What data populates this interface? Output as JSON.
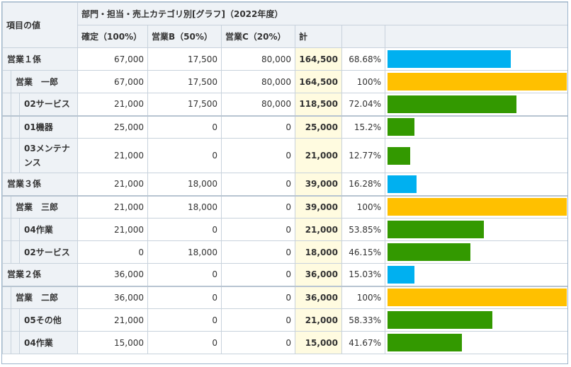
{
  "header": {
    "row_label": "項目の値",
    "group_title": "部門・担当・売上カテゴリ別[グラフ]（2022年度）",
    "columns": [
      "確定（100%）",
      "営業B（50%）",
      "営業C（20%）",
      "計"
    ]
  },
  "colors": {
    "section": "#00b0f0",
    "person": "#ffc000",
    "category": "#339900"
  },
  "rows": [
    {
      "label": "営業１係",
      "level": 0,
      "c1": "67,000",
      "c2": "17,500",
      "c3": "80,000",
      "total": "164,500",
      "pct": "68.68%",
      "bar": 68.68,
      "color": "#00b0f0"
    },
    {
      "label": "営業　一郎",
      "level": 1,
      "c1": "67,000",
      "c2": "17,500",
      "c3": "80,000",
      "total": "164,500",
      "pct": "100%",
      "bar": 100,
      "color": "#ffc000"
    },
    {
      "label": "02サービス",
      "level": 2,
      "c1": "21,000",
      "c2": "17,500",
      "c3": "80,000",
      "total": "118,500",
      "pct": "72.04%",
      "bar": 72.04,
      "color": "#339900"
    },
    {
      "label": "01機器",
      "level": 2,
      "c1": "25,000",
      "c2": "0",
      "c3": "0",
      "total": "25,000",
      "pct": "15.2%",
      "bar": 15.2,
      "color": "#339900"
    },
    {
      "label": "03メンテナンス",
      "level": 2,
      "c1": "21,000",
      "c2": "0",
      "c3": "0",
      "total": "21,000",
      "pct": "12.77%",
      "bar": 12.77,
      "color": "#339900"
    },
    {
      "label": "営業３係",
      "level": 0,
      "c1": "21,000",
      "c2": "18,000",
      "c3": "0",
      "total": "39,000",
      "pct": "16.28%",
      "bar": 16.28,
      "color": "#00b0f0"
    },
    {
      "label": "営業　三郎",
      "level": 1,
      "c1": "21,000",
      "c2": "18,000",
      "c3": "0",
      "total": "39,000",
      "pct": "100%",
      "bar": 100,
      "color": "#ffc000"
    },
    {
      "label": "04作業",
      "level": 2,
      "c1": "21,000",
      "c2": "0",
      "c3": "0",
      "total": "21,000",
      "pct": "53.85%",
      "bar": 53.85,
      "color": "#339900"
    },
    {
      "label": "02サービス",
      "level": 2,
      "c1": "0",
      "c2": "18,000",
      "c3": "0",
      "total": "18,000",
      "pct": "46.15%",
      "bar": 46.15,
      "color": "#339900"
    },
    {
      "label": "営業２係",
      "level": 0,
      "c1": "36,000",
      "c2": "0",
      "c3": "0",
      "total": "36,000",
      "pct": "15.03%",
      "bar": 15.03,
      "color": "#00b0f0"
    },
    {
      "label": "営業　二郎",
      "level": 1,
      "c1": "36,000",
      "c2": "0",
      "c3": "0",
      "total": "36,000",
      "pct": "100%",
      "bar": 100,
      "color": "#ffc000"
    },
    {
      "label": "05その他",
      "level": 2,
      "c1": "21,000",
      "c2": "0",
      "c3": "0",
      "total": "21,000",
      "pct": "58.33%",
      "bar": 58.33,
      "color": "#339900"
    },
    {
      "label": "04作業",
      "level": 2,
      "c1": "15,000",
      "c2": "0",
      "c3": "0",
      "total": "15,000",
      "pct": "41.67%",
      "bar": 41.67,
      "color": "#339900"
    }
  ]
}
